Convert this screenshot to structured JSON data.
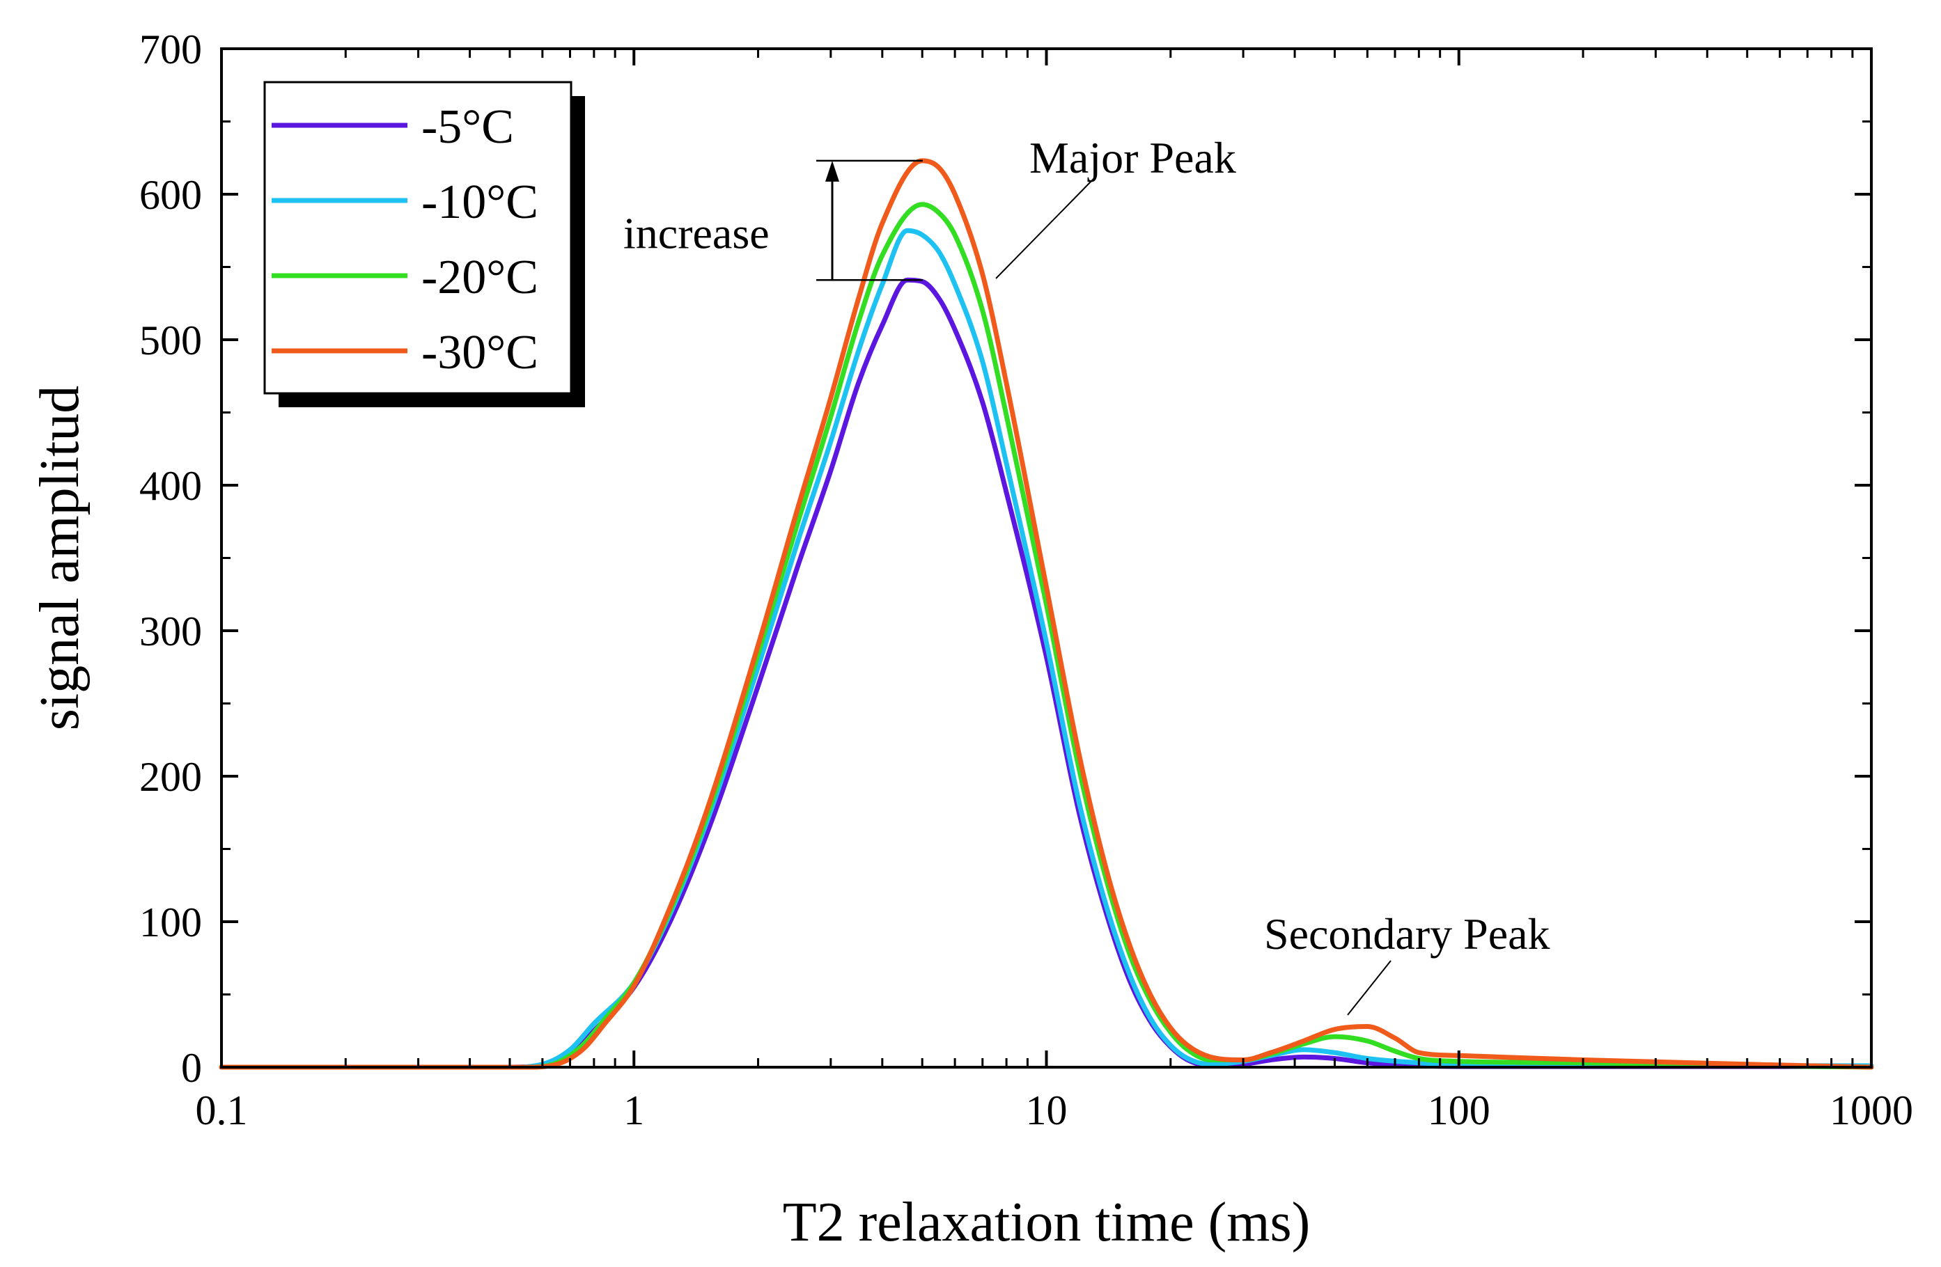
{
  "chart_data": {
    "type": "line",
    "title": "",
    "xlabel": "T2 relaxation time (ms)",
    "ylabel": "signal amplitud",
    "xscale": "log",
    "xlim": [
      0.1,
      1000
    ],
    "ylim": [
      0,
      700
    ],
    "x_ticks": [
      0.1,
      1,
      10,
      100,
      1000
    ],
    "x_tick_labels": [
      "0.1",
      "1",
      "10",
      "100",
      "1000"
    ],
    "y_ticks": [
      0,
      100,
      200,
      300,
      400,
      500,
      600,
      700
    ],
    "y_tick_labels": [
      "0",
      "100",
      "200",
      "300",
      "400",
      "500",
      "600",
      "700"
    ],
    "legend_position": "top-left",
    "grid": false,
    "series": [
      {
        "name": "-5°C",
        "color": "#5b17e0",
        "points": [
          [
            0.1,
            0
          ],
          [
            0.5,
            0
          ],
          [
            0.6,
            1
          ],
          [
            0.7,
            8
          ],
          [
            0.8,
            25
          ],
          [
            1,
            55
          ],
          [
            1.2,
            95
          ],
          [
            1.5,
            160
          ],
          [
            2,
            262
          ],
          [
            2.5,
            345
          ],
          [
            3,
            410
          ],
          [
            3.5,
            470
          ],
          [
            4,
            510
          ],
          [
            4.6,
            541
          ],
          [
            5,
            540
          ],
          [
            5.5,
            528
          ],
          [
            6,
            507
          ],
          [
            7,
            457
          ],
          [
            8,
            395
          ],
          [
            10,
            282
          ],
          [
            12,
            175
          ],
          [
            14,
            105
          ],
          [
            16,
            58
          ],
          [
            18,
            30
          ],
          [
            20,
            14
          ],
          [
            22,
            5
          ],
          [
            25,
            1
          ],
          [
            30,
            2
          ],
          [
            35,
            5
          ],
          [
            42,
            7
          ],
          [
            50,
            6
          ],
          [
            60,
            3
          ],
          [
            80,
            1
          ],
          [
            100,
            0.5
          ],
          [
            1000,
            0.5
          ]
        ]
      },
      {
        "name": "-10°C",
        "color": "#1ec2f2",
        "points": [
          [
            0.1,
            0
          ],
          [
            0.5,
            0
          ],
          [
            0.6,
            2
          ],
          [
            0.7,
            12
          ],
          [
            0.8,
            30
          ],
          [
            1,
            58
          ],
          [
            1.2,
            100
          ],
          [
            1.5,
            168
          ],
          [
            2,
            275
          ],
          [
            2.5,
            362
          ],
          [
            3,
            430
          ],
          [
            3.5,
            492
          ],
          [
            4,
            538
          ],
          [
            4.6,
            575
          ],
          [
            5,
            572
          ],
          [
            5.5,
            560
          ],
          [
            6,
            538
          ],
          [
            7,
            485
          ],
          [
            8,
            415
          ],
          [
            10,
            292
          ],
          [
            12,
            182
          ],
          [
            14,
            110
          ],
          [
            16,
            62
          ],
          [
            18,
            32
          ],
          [
            20,
            15
          ],
          [
            22,
            6
          ],
          [
            25,
            2
          ],
          [
            30,
            4
          ],
          [
            35,
            8
          ],
          [
            42,
            12
          ],
          [
            50,
            10
          ],
          [
            60,
            6
          ],
          [
            80,
            3
          ],
          [
            100,
            2
          ],
          [
            300,
            1
          ],
          [
            1000,
            1
          ]
        ]
      },
      {
        "name": "-20°C",
        "color": "#33dd22",
        "points": [
          [
            0.1,
            0
          ],
          [
            0.55,
            0
          ],
          [
            0.65,
            3
          ],
          [
            0.75,
            15
          ],
          [
            0.85,
            33
          ],
          [
            1,
            58
          ],
          [
            1.2,
            102
          ],
          [
            1.5,
            172
          ],
          [
            2,
            284
          ],
          [
            2.5,
            375
          ],
          [
            3,
            447
          ],
          [
            3.5,
            512
          ],
          [
            4,
            558
          ],
          [
            5,
            593
          ],
          [
            5.5,
            587
          ],
          [
            6,
            572
          ],
          [
            7,
            520
          ],
          [
            8,
            448
          ],
          [
            10,
            318
          ],
          [
            12,
            205
          ],
          [
            14,
            128
          ],
          [
            16,
            76
          ],
          [
            18,
            44
          ],
          [
            20,
            24
          ],
          [
            22,
            12
          ],
          [
            25,
            5
          ],
          [
            30,
            5
          ],
          [
            35,
            9
          ],
          [
            42,
            16
          ],
          [
            50,
            21
          ],
          [
            60,
            18
          ],
          [
            70,
            11
          ],
          [
            80,
            6
          ],
          [
            100,
            4
          ],
          [
            200,
            3
          ],
          [
            500,
            1
          ],
          [
            1000,
            0
          ]
        ]
      },
      {
        "name": "-30°C",
        "color": "#f05a1a",
        "points": [
          [
            0.1,
            0
          ],
          [
            0.55,
            0
          ],
          [
            0.65,
            2
          ],
          [
            0.75,
            12
          ],
          [
            0.85,
            30
          ],
          [
            1,
            56
          ],
          [
            1.2,
            104
          ],
          [
            1.5,
            176
          ],
          [
            2,
            290
          ],
          [
            2.5,
            385
          ],
          [
            3,
            460
          ],
          [
            3.5,
            528
          ],
          [
            4,
            580
          ],
          [
            5,
            623
          ],
          [
            5.5,
            618
          ],
          [
            6,
            600
          ],
          [
            7,
            545
          ],
          [
            8,
            470
          ],
          [
            10,
            330
          ],
          [
            12,
            215
          ],
          [
            14,
            135
          ],
          [
            16,
            82
          ],
          [
            18,
            48
          ],
          [
            20,
            27
          ],
          [
            22,
            15
          ],
          [
            25,
            7
          ],
          [
            30,
            5
          ],
          [
            35,
            10
          ],
          [
            42,
            18
          ],
          [
            50,
            26
          ],
          [
            60,
            28
          ],
          [
            70,
            20
          ],
          [
            80,
            10
          ],
          [
            100,
            8
          ],
          [
            200,
            5
          ],
          [
            500,
            2
          ],
          [
            1000,
            0
          ]
        ]
      }
    ],
    "annotations": [
      {
        "text": "Major Peak",
        "note": "pointer to main peak"
      },
      {
        "text": "Secondary Peak",
        "note": "pointer to secondary peak"
      },
      {
        "text": "increase",
        "note": "arrow from -5°C peak (541) to -30°C peak (623)",
        "from_value": 541,
        "to_value": 623
      }
    ]
  }
}
